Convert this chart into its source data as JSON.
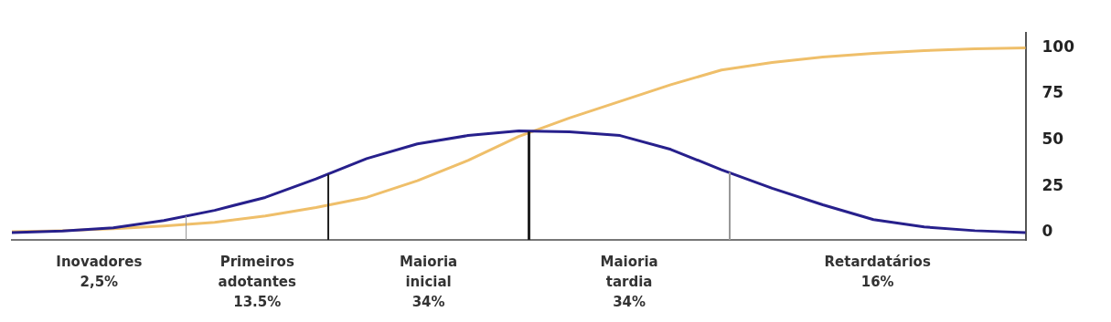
{
  "chart_data": {
    "type": "line",
    "categories": [
      null,
      null,
      null,
      null,
      null,
      null,
      null,
      null,
      null,
      null,
      null,
      null,
      null,
      null,
      null,
      null,
      null,
      null,
      null,
      null,
      null
    ],
    "ylim": [
      -4,
      108
    ],
    "yticks": [
      0,
      25,
      50,
      75,
      100
    ],
    "tick_labels": "y",
    "grid": false,
    "legend": false,
    "marker": "none",
    "line_style": "solid",
    "series": [
      {
        "color": "#27208c",
        "values": [
          0,
          0.8,
          2.5,
          6.5,
          12,
          19,
          29,
          40,
          48,
          52.5,
          55,
          54.5,
          52.5,
          45,
          34,
          24,
          15,
          7,
          3,
          1,
          0
        ]
      },
      {
        "color": "#efbf6a",
        "values": [
          0.5,
          1,
          2,
          3.5,
          5.5,
          9,
          13.5,
          19,
          28,
          39,
          52,
          62,
          71,
          80,
          88,
          92,
          95,
          97,
          98.5,
          99.5,
          100
        ]
      }
    ],
    "annotations": [
      "Inovadores\n2,5%",
      "Primeiros\nadotantes\n13.5%",
      "Maioria\ninicial\n34%",
      "Maioria\ntardia\n34%",
      "Retardatários\n16%"
    ]
  }
}
